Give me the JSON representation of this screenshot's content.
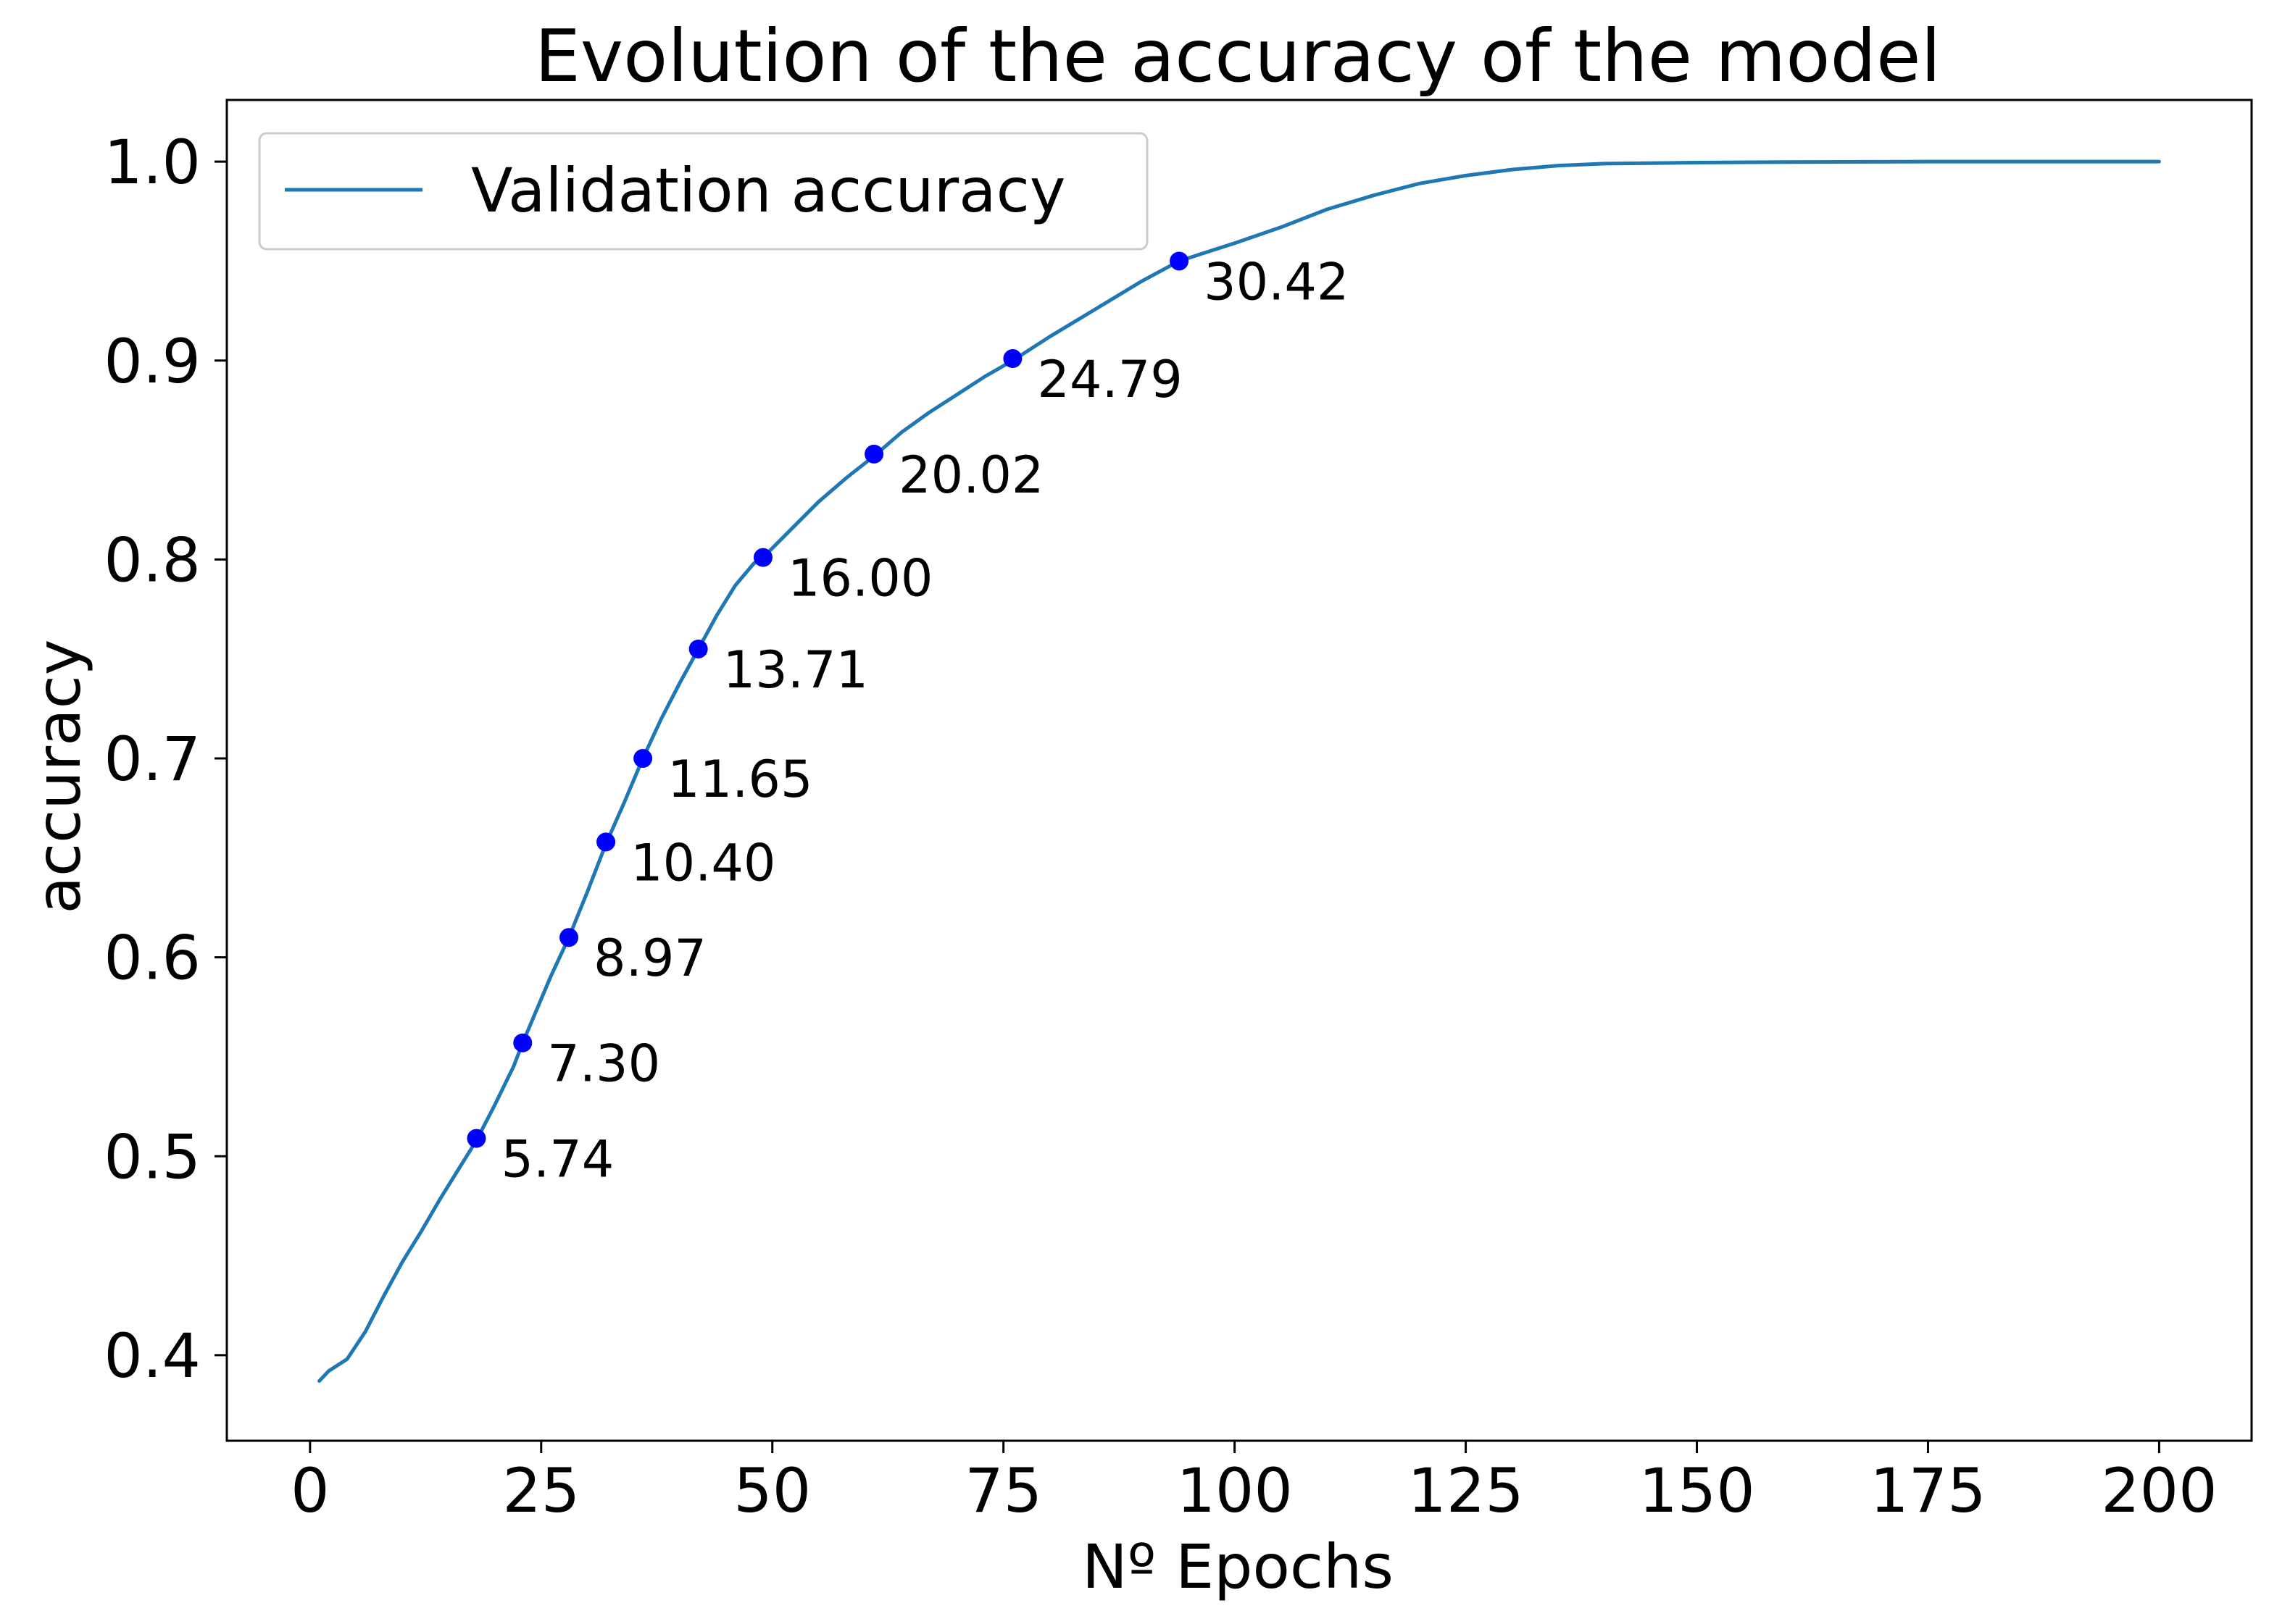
{
  "chart_data": {
    "type": "line",
    "title": "Evolution of the accuracy of the model",
    "xlabel": "Nº Epochs",
    "ylabel": "accuracy",
    "xlim": [
      -9,
      210
    ],
    "ylim": [
      0.357,
      1.031
    ],
    "xticks": [
      0,
      25,
      50,
      75,
      100,
      125,
      150,
      175,
      200
    ],
    "yticks": [
      0.4,
      0.5,
      0.6,
      0.7,
      0.8,
      0.9,
      1.0
    ],
    "ytick_labels": [
      "0.4",
      "0.5",
      "0.6",
      "0.7",
      "0.8",
      "0.9",
      "1.0"
    ],
    "grid": false,
    "legend_position": "top-left",
    "series": [
      {
        "name": "Validation accuracy",
        "color": "#1f77b4",
        "x": [
          1,
          2,
          4,
          6,
          8,
          10,
          12,
          14,
          16,
          18,
          20,
          22,
          23,
          24,
          26,
          28,
          30,
          32,
          34,
          36,
          38,
          40,
          42,
          44,
          46,
          48,
          49,
          52,
          55,
          58,
          61,
          64,
          67,
          70,
          73,
          76,
          80,
          85,
          90,
          94,
          100,
          105,
          110,
          115,
          120,
          125,
          130,
          135,
          140,
          150,
          160,
          175,
          190,
          200
        ],
        "y": [
          0.387,
          0.392,
          0.398,
          0.412,
          0.43,
          0.447,
          0.462,
          0.478,
          0.493,
          0.508,
          0.526,
          0.545,
          0.557,
          0.568,
          0.59,
          0.61,
          0.633,
          0.657,
          0.678,
          0.7,
          0.72,
          0.738,
          0.755,
          0.772,
          0.787,
          0.798,
          0.801,
          0.815,
          0.829,
          0.841,
          0.852,
          0.864,
          0.874,
          0.883,
          0.892,
          0.9,
          0.912,
          0.926,
          0.94,
          0.95,
          0.959,
          0.967,
          0.976,
          0.983,
          0.989,
          0.993,
          0.996,
          0.998,
          0.999,
          0.9995,
          0.9998,
          1.0,
          1.0,
          1.0
        ]
      }
    ],
    "markers": {
      "color": "#0000ff",
      "points": [
        {
          "x": 18,
          "y": 0.509,
          "label": "5.74"
        },
        {
          "x": 23,
          "y": 0.557,
          "label": "7.30"
        },
        {
          "x": 28,
          "y": 0.61,
          "label": "8.97"
        },
        {
          "x": 32,
          "y": 0.658,
          "label": "10.40"
        },
        {
          "x": 36,
          "y": 0.7,
          "label": "11.65"
        },
        {
          "x": 42,
          "y": 0.755,
          "label": "13.71"
        },
        {
          "x": 49,
          "y": 0.801,
          "label": "16.00"
        },
        {
          "x": 61,
          "y": 0.853,
          "label": "20.02"
        },
        {
          "x": 76,
          "y": 0.901,
          "label": "24.79"
        },
        {
          "x": 94,
          "y": 0.95,
          "label": "30.42"
        }
      ]
    }
  }
}
